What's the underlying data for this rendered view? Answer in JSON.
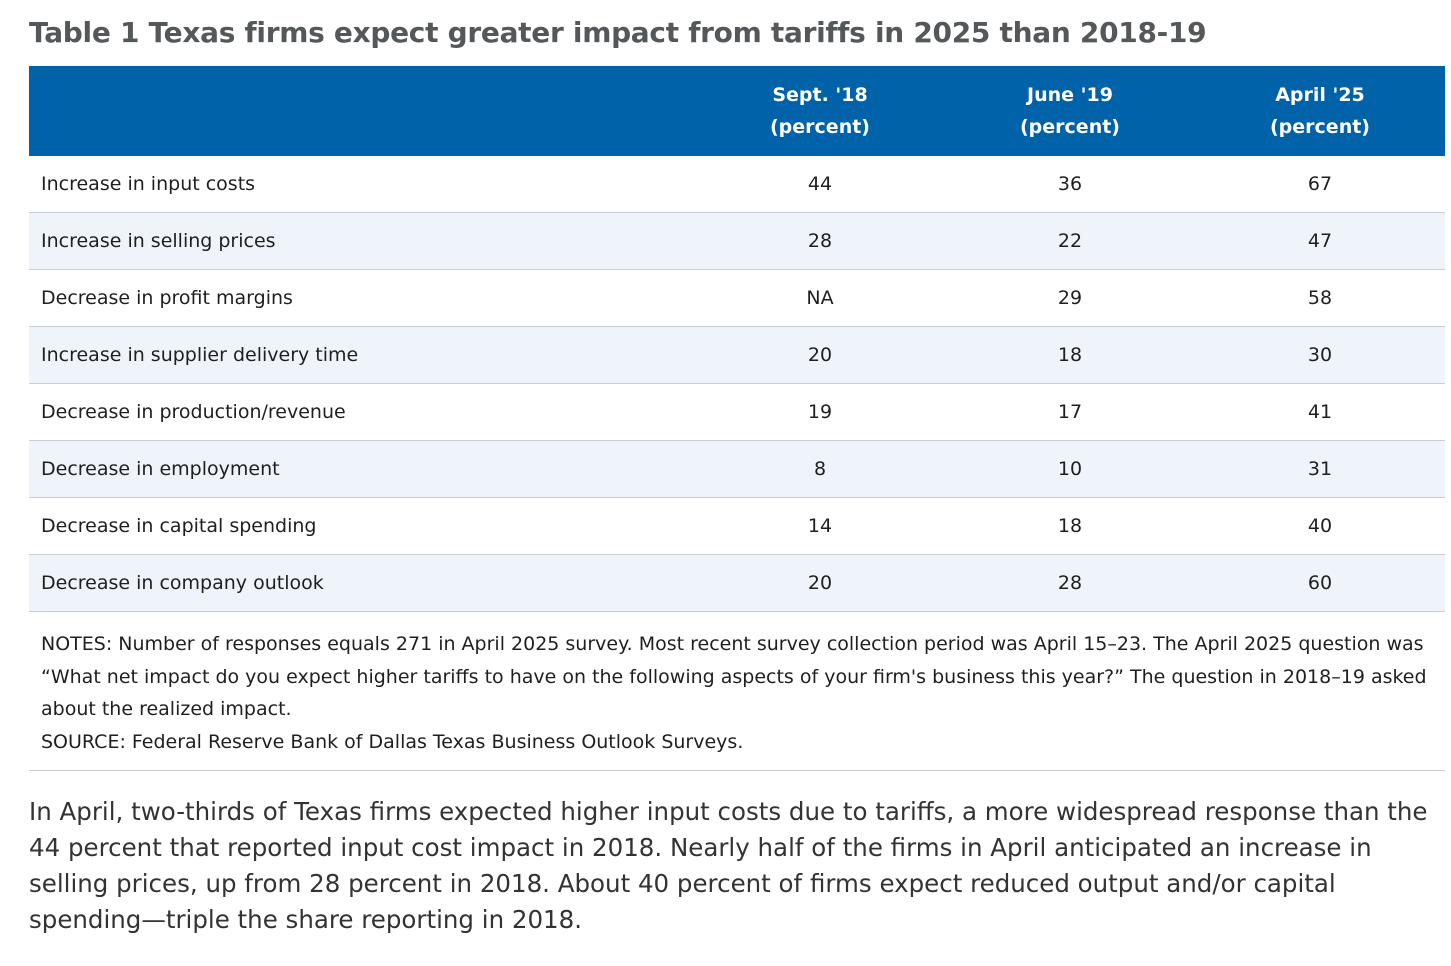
{
  "title": "Table 1 Texas firms expect greater impact from tariffs in 2025 than 2018-19",
  "table": {
    "headers": [
      {
        "period": "",
        "unit": ""
      },
      {
        "period": "Sept. '18",
        "unit": "(percent)"
      },
      {
        "period": "June '19",
        "unit": "(percent)"
      },
      {
        "period": "April '25",
        "unit": "(percent)"
      }
    ],
    "rows": [
      {
        "label": "Increase in input costs",
        "sept18": "44",
        "june19": "36",
        "april25": "67"
      },
      {
        "label": "Increase in selling prices",
        "sept18": "28",
        "june19": "22",
        "april25": "47"
      },
      {
        "label": "Decrease in profit margins",
        "sept18": "NA",
        "june19": "29",
        "april25": "58"
      },
      {
        "label": "Increase in supplier delivery time",
        "sept18": "20",
        "june19": "18",
        "april25": "30"
      },
      {
        "label": "Decrease in production/revenue",
        "sept18": "19",
        "june19": "17",
        "april25": "41"
      },
      {
        "label": "Decrease in employment",
        "sept18": "8",
        "june19": "10",
        "april25": "31"
      },
      {
        "label": "Decrease in capital spending",
        "sept18": "14",
        "june19": "18",
        "april25": "40"
      },
      {
        "label": "Decrease in company outlook",
        "sept18": "20",
        "june19": "28",
        "april25": "60"
      }
    ]
  },
  "notes": "NOTES: Number of responses equals 271 in April 2025 survey. Most recent survey collection period was April 15–23. The April 2025 question was “What net impact do you expect higher tariffs to have on the following aspects of your firm's business this year?” The question in 2018–19 asked about the realized impact.",
  "source": "SOURCE: Federal Reserve Bank of Dallas Texas Business Outlook Surveys.",
  "body_text": "In April, two-thirds of Texas firms expected higher input costs due to tariffs, a more widespread response than the 44 percent that reported input cost impact in 2018. Nearly half of the firms in April anticipated an increase in selling prices, up from 28 percent in 2018. About 40 percent of firms expect reduced output and/or capital spending—triple the share reporting in 2018.",
  "colors": {
    "header_bg": "#0062a8",
    "stripe_bg": "#eef4fa",
    "title": "#54585a",
    "rule": "#c9ced3"
  }
}
